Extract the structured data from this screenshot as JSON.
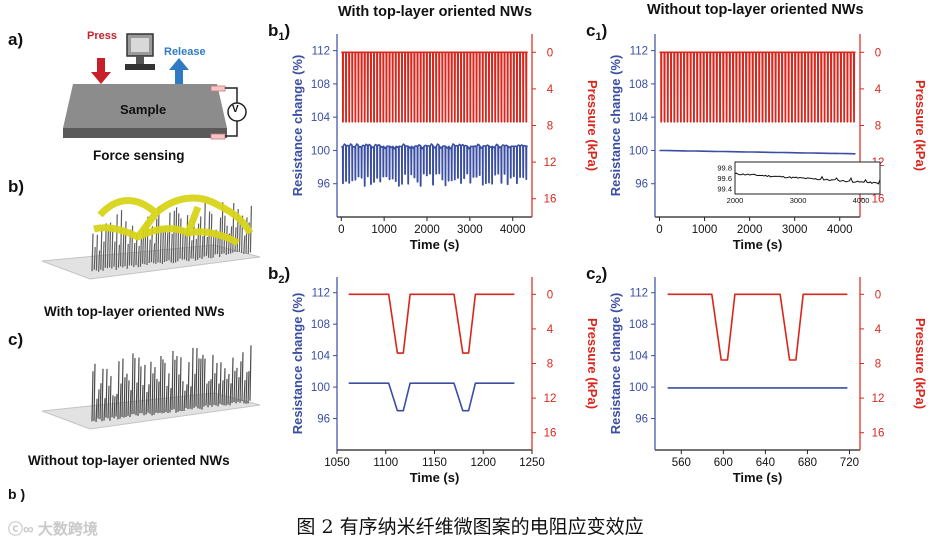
{
  "left_panel": {
    "a_label": "a)",
    "press": "Press",
    "release": "Release",
    "sample": "Sample",
    "v": "V",
    "force_caption": "Force sensing",
    "b_label": "b)",
    "b_caption": "With top-layer oriented NWs",
    "c_label": "c)",
    "c_caption": "Without top-layer oriented NWs",
    "cut_label": "b )"
  },
  "column_titles": {
    "with": "With top-layer oriented NWs",
    "without": "Without top-layer oriented NWs"
  },
  "caption": "图 2 有序纳米纤维微图案的电阻应变效应",
  "watermark": "大数跨境",
  "colors": {
    "resistance": "#3a4ea3",
    "pressure": "#d9261c",
    "axis": "#222222"
  },
  "chart_data": [
    {
      "id": "b1",
      "label_main": "b",
      "label_sub": "1",
      "type": "line",
      "xlabel": "Time (s)",
      "ylabel_left": "Resistance change (%)",
      "ylabel_right": "Pressure (kPa)",
      "xlim": [
        -100,
        4450
      ],
      "xticks": [
        0,
        1000,
        2000,
        3000,
        4000
      ],
      "ylim_left": [
        92,
        114
      ],
      "yticks_left": [
        96,
        100,
        104,
        108,
        112
      ],
      "ylim_right": [
        18,
        -2
      ],
      "yticks_right": [
        0,
        4,
        8,
        12,
        16
      ],
      "series": [
        {
          "name": "Resistance change",
          "axis": "left",
          "pattern": "cycles",
          "start": 0,
          "end": 4350,
          "cycles": 60,
          "base": 100.5,
          "dip": 96.5
        },
        {
          "name": "Pressure",
          "axis": "right",
          "pattern": "cycles",
          "start": 0,
          "end": 4350,
          "cycles": 60,
          "base": 0,
          "dip": 7.6
        }
      ]
    },
    {
      "id": "c1",
      "label_main": "c",
      "label_sub": "1",
      "type": "line",
      "xlabel": "Time (s)",
      "ylabel_left": "Resistance change (%)",
      "ylabel_right": "Pressure (kPa)",
      "xlim": [
        -100,
        4450
      ],
      "xticks": [
        0,
        1000,
        2000,
        3000,
        4000
      ],
      "ylim_left": [
        92,
        114
      ],
      "yticks_left": [
        96,
        100,
        104,
        108,
        112
      ],
      "ylim_right": [
        18,
        -2
      ],
      "yticks_right": [
        0,
        4,
        8,
        12,
        16
      ],
      "series": [
        {
          "name": "Resistance change",
          "axis": "left",
          "pattern": "drift",
          "start": 0,
          "end": 4350,
          "from": 100.0,
          "to": 99.6
        },
        {
          "name": "Pressure",
          "axis": "right",
          "pattern": "cycles",
          "start": 0,
          "end": 4350,
          "cycles": 60,
          "base": 0,
          "dip": 7.6
        }
      ],
      "inset": {
        "xlim": [
          2000,
          4300
        ],
        "xticks": [
          2000,
          3000,
          4000
        ],
        "ylim": [
          99.3,
          99.9
        ],
        "yticks": [
          99.4,
          99.6,
          99.8
        ],
        "from": 99.68,
        "to": 99.5
      }
    },
    {
      "id": "b2",
      "label_main": "b",
      "label_sub": "2",
      "type": "line",
      "xlabel": "Time (s)",
      "ylabel_left": "Resistance change (%)",
      "ylabel_right": "Pressure (kPa)",
      "xlim": [
        1050,
        1250
      ],
      "xticks": [
        1050,
        1100,
        1150,
        1200,
        1250
      ],
      "ylim_left": [
        92,
        114
      ],
      "yticks_left": [
        96,
        100,
        104,
        108,
        112
      ],
      "ylim_right": [
        18,
        -2
      ],
      "yticks_right": [
        0,
        4,
        8,
        12,
        16
      ],
      "series": [
        {
          "name": "Resistance change",
          "axis": "left",
          "pattern": "pulses",
          "start": 1062,
          "end": 1232,
          "base": 100.5,
          "dip": 97.0,
          "pulses": [
            1115,
            1182
          ],
          "halfwidth": 10
        },
        {
          "name": "Pressure",
          "axis": "right",
          "pattern": "pulses",
          "start": 1062,
          "end": 1232,
          "base": 0,
          "dip": 6.8,
          "pulses": [
            1115,
            1182
          ],
          "halfwidth": 10
        }
      ]
    },
    {
      "id": "c2",
      "label_main": "c",
      "label_sub": "2",
      "type": "line",
      "xlabel": "Time (s)",
      "ylabel_left": "Resistance change (%)",
      "ylabel_right": "Pressure (kPa)",
      "xlim": [
        535,
        730
      ],
      "xticks": [
        560,
        600,
        640,
        680,
        720
      ],
      "ylim_left": [
        92,
        114
      ],
      "yticks_left": [
        96,
        100,
        104,
        108,
        112
      ],
      "ylim_right": [
        18,
        -2
      ],
      "yticks_right": [
        0,
        4,
        8,
        12,
        16
      ],
      "series": [
        {
          "name": "Resistance change",
          "axis": "left",
          "pattern": "flat",
          "start": 547,
          "end": 718,
          "value": 99.9
        },
        {
          "name": "Pressure",
          "axis": "right",
          "pattern": "pulses",
          "start": 547,
          "end": 718,
          "base": 0,
          "dip": 7.6,
          "pulses": [
            601,
            666
          ],
          "halfwidth": 10
        }
      ]
    }
  ]
}
